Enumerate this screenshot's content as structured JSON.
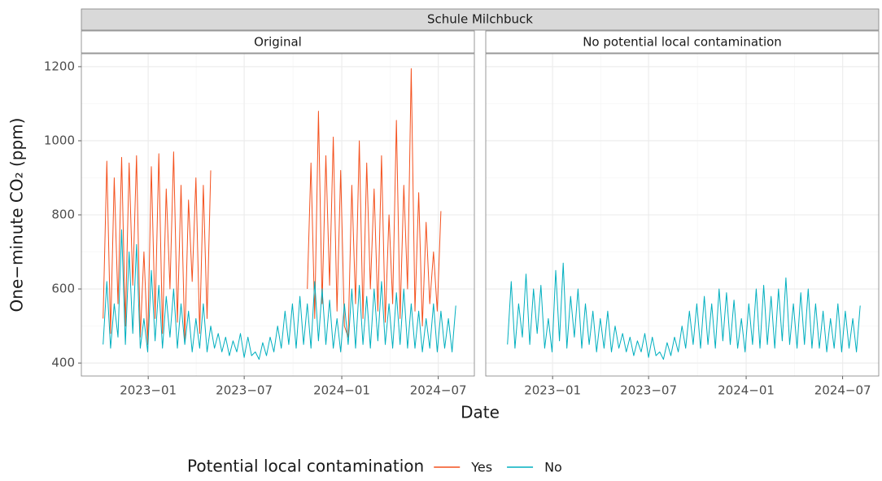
{
  "chart_data": {
    "type": "line",
    "title": "Schule Milchbuck",
    "x_label": "Date",
    "y_label": "One−minute CO₂ (ppm)",
    "legend_title": "Potential local contamination",
    "legend_position": "bottom",
    "grid": true,
    "xlim": [
      "2022-08-28",
      "2024-09-07"
    ],
    "xticks": [
      {
        "value": "2023-01-01",
        "label": "2023−01"
      },
      {
        "value": "2023-07-01",
        "label": "2023−07"
      },
      {
        "value": "2024-01-01",
        "label": "2024−01"
      },
      {
        "value": "2024-07-01",
        "label": "2024−07"
      }
    ],
    "ylim": [
      365,
      1235
    ],
    "yticks": [
      400,
      600,
      800,
      1000,
      1200
    ],
    "x": [
      "2022-10-08",
      "2022-10-15",
      "2022-10-22",
      "2022-10-29",
      "2022-11-05",
      "2022-11-12",
      "2022-11-19",
      "2022-11-26",
      "2022-12-03",
      "2022-12-10",
      "2022-12-17",
      "2022-12-24",
      "2022-12-31",
      "2023-01-07",
      "2023-01-14",
      "2023-01-21",
      "2023-01-28",
      "2023-02-04",
      "2023-02-11",
      "2023-02-18",
      "2023-02-25",
      "2023-03-04",
      "2023-03-11",
      "2023-03-18",
      "2023-03-25",
      "2023-04-01",
      "2023-04-08",
      "2023-04-15",
      "2023-04-22",
      "2023-04-29",
      "2023-05-06",
      "2023-05-13",
      "2023-05-20",
      "2023-05-27",
      "2023-06-03",
      "2023-06-10",
      "2023-06-17",
      "2023-06-24",
      "2023-07-01",
      "2023-07-08",
      "2023-07-15",
      "2023-07-22",
      "2023-07-29",
      "2023-08-05",
      "2023-08-12",
      "2023-08-19",
      "2023-08-26",
      "2023-09-02",
      "2023-09-09",
      "2023-09-16",
      "2023-09-23",
      "2023-09-30",
      "2023-10-07",
      "2023-10-14",
      "2023-10-21",
      "2023-10-28",
      "2023-11-04",
      "2023-11-11",
      "2023-11-18",
      "2023-11-25",
      "2023-12-02",
      "2023-12-09",
      "2023-12-16",
      "2023-12-23",
      "2023-12-30",
      "2024-01-06",
      "2024-01-13",
      "2024-01-20",
      "2024-01-27",
      "2024-02-03",
      "2024-02-10",
      "2024-02-17",
      "2024-02-24",
      "2024-03-02",
      "2024-03-09",
      "2024-03-16",
      "2024-03-23",
      "2024-03-30",
      "2024-04-06",
      "2024-04-13",
      "2024-04-20",
      "2024-04-27",
      "2024-05-04",
      "2024-05-11",
      "2024-05-18",
      "2024-05-25",
      "2024-06-01",
      "2024-06-08",
      "2024-06-15",
      "2024-06-22",
      "2024-06-29",
      "2024-07-06",
      "2024-07-13",
      "2024-07-20",
      "2024-07-27",
      "2024-08-03"
    ],
    "panels": [
      {
        "title": "Original",
        "series": [
          {
            "name": "Yes",
            "color": "#F4511E",
            "values": [
              520,
              945,
              480,
              900,
              560,
              955,
              500,
              940,
              610,
              960,
              470,
              700,
              450,
              930,
              520,
              965,
              480,
              870,
              600,
              970,
              510,
              880,
              460,
              840,
              620,
              900,
              480,
              880,
              520,
              920,
              null,
              null,
              null,
              null,
              null,
              null,
              null,
              null,
              null,
              null,
              null,
              null,
              null,
              null,
              null,
              null,
              null,
              null,
              null,
              null,
              null,
              null,
              null,
              null,
              null,
              600,
              940,
              520,
              1080,
              560,
              960,
              610,
              1010,
              540,
              920,
              500,
              470,
              880,
              560,
              1000,
              520,
              940,
              600,
              870,
              540,
              960,
              510,
              800,
              560,
              1055,
              520,
              880,
              600,
              1195,
              540,
              860,
              500,
              780,
              560,
              700,
              540,
              810,
              null,
              null,
              null,
              null
            ]
          },
          {
            "name": "No",
            "color": "#00AFBF",
            "values": [
              450,
              620,
              440,
              560,
              470,
              760,
              450,
              700,
              480,
              720,
              440,
              520,
              430,
              650,
              460,
              610,
              440,
              580,
              470,
              600,
              440,
              560,
              450,
              540,
              430,
              520,
              440,
              560,
              430,
              500,
              440,
              480,
              430,
              470,
              420,
              460,
              430,
              480,
              415,
              470,
              420,
              430,
              410,
              455,
              420,
              470,
              430,
              500,
              440,
              540,
              450,
              560,
              440,
              580,
              450,
              560,
              440,
              620,
              460,
              600,
              450,
              570,
              440,
              520,
              430,
              560,
              450,
              600,
              440,
              610,
              450,
              580,
              440,
              600,
              460,
              620,
              450,
              560,
              440,
              590,
              450,
              600,
              440,
              560,
              440,
              540,
              430,
              520,
              440,
              560,
              430,
              540,
              440,
              520,
              430,
              555
            ]
          }
        ]
      },
      {
        "title": "No potential local contamination",
        "series": [
          {
            "name": "No",
            "color": "#00AFBF",
            "values": [
              450,
              620,
              440,
              560,
              470,
              640,
              450,
              600,
              480,
              610,
              440,
              520,
              430,
              650,
              460,
              670,
              440,
              580,
              470,
              600,
              440,
              560,
              450,
              540,
              430,
              520,
              440,
              540,
              430,
              500,
              440,
              480,
              430,
              470,
              420,
              460,
              430,
              480,
              415,
              470,
              420,
              430,
              410,
              455,
              420,
              470,
              430,
              500,
              440,
              540,
              450,
              560,
              440,
              580,
              450,
              560,
              440,
              600,
              460,
              590,
              450,
              570,
              440,
              520,
              430,
              560,
              450,
              600,
              440,
              610,
              450,
              580,
              440,
              600,
              460,
              630,
              450,
              560,
              440,
              590,
              450,
              600,
              440,
              560,
              440,
              540,
              430,
              520,
              440,
              560,
              430,
              540,
              440,
              520,
              430,
              555
            ]
          }
        ]
      }
    ]
  }
}
